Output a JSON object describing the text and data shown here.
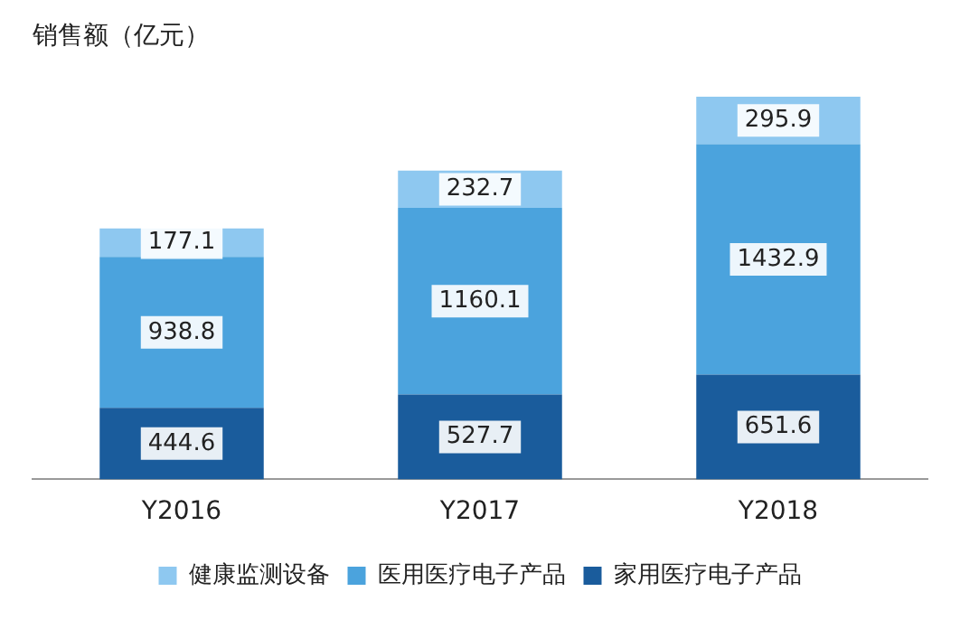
{
  "chart_data": {
    "type": "bar",
    "title": "销售额（亿元）",
    "categories": [
      "Y2016",
      "Y2017",
      "Y2018"
    ],
    "stacked": true,
    "data_labels": true,
    "legend": "bottom",
    "tick_labels": "x",
    "grid": false,
    "series": [
      {
        "name": "家用医疗电子产品",
        "color": "#1a5c9c",
        "values": [
          444.6,
          527.7,
          651.6
        ]
      },
      {
        "name": "医用医疗电子产品",
        "color": "#4ba3dd",
        "values": [
          938.8,
          1160.1,
          1432.9
        ]
      },
      {
        "name": "健康监测设备",
        "color": "#8ec8f0",
        "values": [
          177.1,
          232.7,
          295.9
        ]
      }
    ]
  }
}
